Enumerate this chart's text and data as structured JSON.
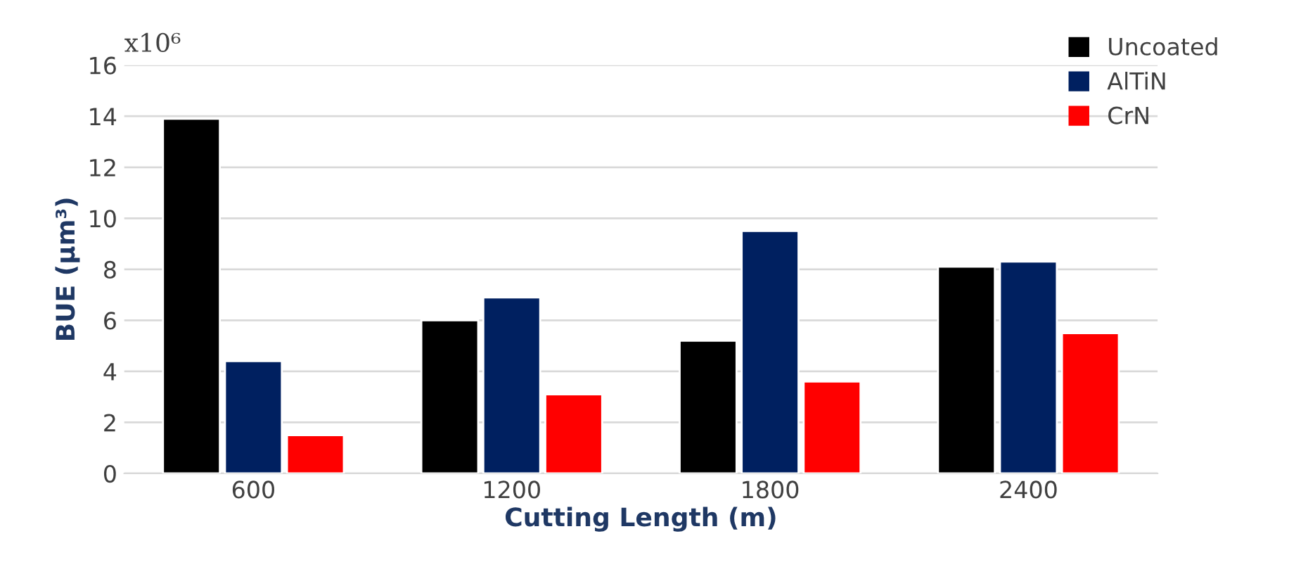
{
  "chart_data": {
    "type": "bar",
    "xlabel": "Cutting Length (m)",
    "ylabel": "BUE (µm³)",
    "annotations": [
      "x10⁶"
    ],
    "categories": [
      "600",
      "1200",
      "1800",
      "2400"
    ],
    "series": [
      {
        "name": "Uncoated",
        "color": "#000000",
        "values": [
          13.9,
          6.0,
          5.2,
          8.1
        ]
      },
      {
        "name": "AlTiN",
        "color": "#002060",
        "values": [
          4.4,
          6.9,
          9.5,
          8.3
        ]
      },
      {
        "name": "CrN",
        "color": "#ff0000",
        "values": [
          1.5,
          3.1,
          3.6,
          5.5
        ]
      }
    ],
    "ylim": [
      0,
      16
    ],
    "yticks": [
      0,
      2,
      4,
      6,
      8,
      10,
      12,
      14,
      16
    ],
    "grid": "y",
    "legend": "top right"
  }
}
